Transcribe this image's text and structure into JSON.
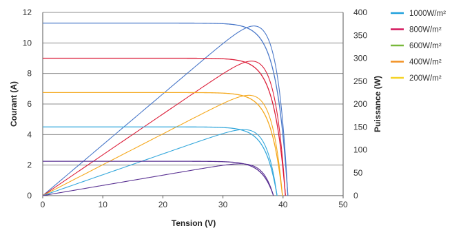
{
  "chart_data": {
    "type": "line",
    "xlabel": "Tension (V)",
    "ylabel": "Courant (A)",
    "y2label": "Puissance (W)",
    "xlim": [
      0,
      50
    ],
    "ylim": [
      0,
      12
    ],
    "y2lim": [
      0,
      400
    ],
    "xticks": [
      "0",
      "10",
      "20",
      "30",
      "40",
      "50"
    ],
    "yticks": [
      "0",
      "2",
      "4",
      "6",
      "8",
      "10",
      "12"
    ],
    "y2ticks": [
      "0",
      "50",
      "100",
      "150",
      "200",
      "250",
      "300",
      "350",
      "400"
    ],
    "grid": "horizontal",
    "legend_position": "top-right",
    "series": [
      {
        "name": "1000W/m²",
        "color": "#4a78c9",
        "legend_color": "#1fa0dc",
        "isc": 11.3,
        "voc": 40.8,
        "vmp": 34.0,
        "imp": 10.8,
        "pmax": 367
      },
      {
        "name": "800W/m²",
        "color": "#dc1f3a",
        "legend_color": "#d4145a",
        "isc": 9.0,
        "voc": 40.4,
        "vmp": 33.2,
        "imp": 8.7,
        "pmax": 289
      },
      {
        "name": "600W/m²",
        "color": "#f5a81c",
        "legend_color": "#78b83a",
        "isc": 6.75,
        "voc": 39.9,
        "vmp": 33.5,
        "imp": 6.5,
        "pmax": 218
      },
      {
        "name": "400W/m²",
        "color": "#35a8dc",
        "legend_color": "#f29122",
        "isc": 4.5,
        "voc": 39.0,
        "vmp": 33.0,
        "imp": 4.35,
        "pmax": 144
      },
      {
        "name": "200W/m²",
        "color": "#5a3293",
        "legend_color": "#f5d327",
        "isc": 2.25,
        "voc": 38.4,
        "vmp": 32.0,
        "imp": 2.15,
        "pmax": 69
      }
    ]
  }
}
